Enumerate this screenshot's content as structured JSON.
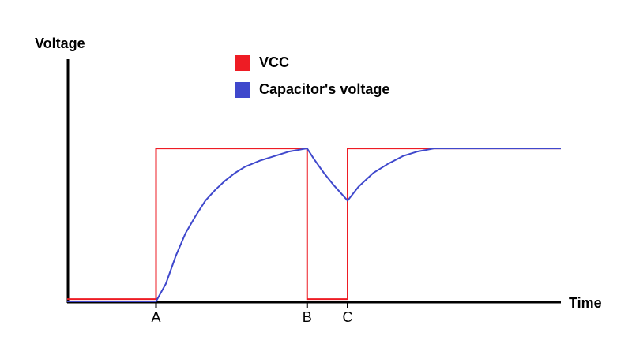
{
  "chart_data": {
    "type": "line",
    "ylabel": "Voltage",
    "xlabel": "Time",
    "xlim": [
      0,
      100
    ],
    "ylim": [
      0,
      1.58
    ],
    "xticks": [
      {
        "value": 18,
        "label": "A"
      },
      {
        "value": 48.6,
        "label": "B"
      },
      {
        "value": 56.8,
        "label": "C"
      }
    ],
    "legend": "top",
    "series": [
      {
        "name": "VCC",
        "color": "#ee1c24",
        "x": [
          0,
          18,
          18,
          48.6,
          48.6,
          56.8,
          56.8,
          100
        ],
        "values": [
          0.02,
          0.02,
          1,
          1,
          0.02,
          0.02,
          1,
          1
        ]
      },
      {
        "name": "Capacitor's voltage",
        "color": "#3f48cc",
        "x": [
          0,
          18,
          20,
          22,
          24,
          26,
          28,
          30,
          32,
          34,
          36,
          39,
          42,
          45,
          48.6,
          50,
          52,
          54,
          56.8,
          59,
          62,
          65,
          68,
          71,
          74.4,
          100
        ],
        "values": [
          0.005,
          0.005,
          0.12,
          0.3,
          0.45,
          0.56,
          0.66,
          0.73,
          0.79,
          0.84,
          0.88,
          0.92,
          0.95,
          0.98,
          1,
          0.93,
          0.84,
          0.76,
          0.66,
          0.75,
          0.84,
          0.9,
          0.95,
          0.98,
          1,
          1
        ]
      }
    ]
  }
}
